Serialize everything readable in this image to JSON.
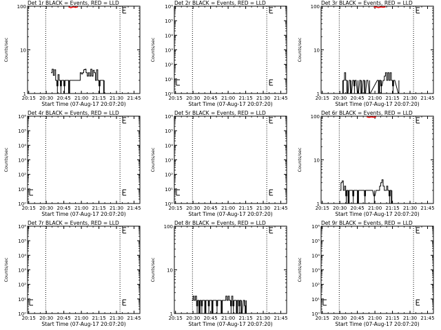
{
  "chart_data": [
    {
      "type": "line",
      "title": "Det 1r BLACK = Events, RED = LLD",
      "xlabel": "Start Time (07-Aug-17 20:07:20)",
      "ylabel": "Counts/sec",
      "yscale": "log",
      "ylim": [
        1,
        100
      ],
      "yticks": [
        "1",
        "10",
        "100"
      ],
      "xticks": [
        "20:15",
        "20:30",
        "20:45",
        "21:00",
        "21:15",
        "21:30",
        "21:45"
      ],
      "xlim": [
        7,
        103
      ],
      "vlines": [
        22.5,
        86,
        103
      ],
      "events": [
        [
          27,
          3
        ],
        [
          28,
          3.6
        ],
        [
          29,
          2.6
        ],
        [
          30,
          3.5
        ],
        [
          31,
          2
        ],
        [
          32,
          1.5
        ],
        [
          33,
          2.7
        ],
        [
          34,
          2
        ],
        [
          35,
          1.5
        ],
        [
          36,
          2
        ],
        [
          37,
          2
        ],
        [
          38,
          1.5
        ],
        [
          39,
          2
        ],
        [
          40,
          2
        ],
        [
          41,
          2
        ],
        [
          42,
          1
        ],
        [
          43,
          2
        ],
        [
          44,
          2
        ],
        [
          45,
          2
        ],
        [
          46,
          2
        ],
        [
          47,
          2
        ],
        [
          48,
          2
        ],
        [
          50,
          2
        ],
        [
          51,
          2
        ],
        [
          52,
          3
        ],
        [
          53,
          2.8
        ],
        [
          54,
          3
        ],
        [
          55,
          3.5
        ],
        [
          56,
          3.6
        ],
        [
          57,
          3
        ],
        [
          58,
          2.5
        ],
        [
          59,
          3
        ],
        [
          60,
          2.5
        ],
        [
          61,
          3.6
        ],
        [
          62,
          2.5
        ],
        [
          63,
          3.4
        ],
        [
          64,
          3
        ],
        [
          65,
          2
        ],
        [
          66,
          3.5
        ],
        [
          67,
          2
        ],
        [
          68,
          1.5
        ],
        [
          69,
          2
        ],
        [
          70,
          2
        ],
        [
          71,
          2
        ],
        [
          72,
          1
        ]
      ],
      "lld": [
        [
          42,
          100
        ],
        [
          44,
          95
        ],
        [
          46,
          100
        ],
        [
          48,
          97
        ],
        [
          50,
          100
        ]
      ],
      "series": [
        {
          "name": "BLACK = Events"
        },
        {
          "name": "RED = LLD"
        }
      ]
    },
    {
      "type": "line",
      "title": "Det 2r BLACK = Events, RED = LLD",
      "xlabel": "Start Time (07-Aug-17 20:07:20)",
      "ylabel": "Counts/sec",
      "yscale": "log",
      "ylim": [
        1,
        1000000
      ],
      "yticks": [
        "10⁰",
        "10¹",
        "10²",
        "10³",
        "10⁴",
        "10⁵",
        "10⁶"
      ],
      "xticks": [
        "20:15",
        "20:30",
        "20:45",
        "21:00",
        "21:15",
        "21:30",
        "21:45"
      ],
      "xlim": [
        7,
        103
      ],
      "vlines": [
        22.5,
        86,
        103
      ],
      "events": [],
      "lld": []
    },
    {
      "type": "line",
      "title": "Det 3r BLACK = Events, RED = LLD",
      "xlabel": "Start Time (07-Aug-17 20:07:20)",
      "ylabel": "Counts/sec",
      "yscale": "log",
      "ylim": [
        1,
        100
      ],
      "yticks": [
        "1",
        "10",
        "100"
      ],
      "xticks": [
        "20:15",
        "20:30",
        "20:45",
        "21:00",
        "21:15",
        "21:30",
        "21:45"
      ],
      "xlim": [
        7,
        103
      ],
      "vlines": [
        22.5,
        86,
        103
      ],
      "events": [
        [
          25,
          1
        ],
        [
          26,
          2
        ],
        [
          27,
          3
        ],
        [
          28,
          2
        ],
        [
          29,
          1
        ],
        [
          31,
          2
        ],
        [
          32,
          1
        ],
        [
          34,
          2
        ],
        [
          35,
          1.5
        ],
        [
          36,
          2
        ],
        [
          38,
          1
        ],
        [
          40,
          2
        ],
        [
          41,
          1
        ],
        [
          43,
          2
        ],
        [
          44,
          1
        ],
        [
          46,
          2
        ],
        [
          48,
          1
        ],
        [
          55,
          2
        ],
        [
          56,
          1
        ],
        [
          57,
          2
        ],
        [
          58,
          1.5
        ],
        [
          60,
          2
        ],
        [
          61,
          2.5
        ],
        [
          62,
          3
        ],
        [
          63,
          2
        ],
        [
          64,
          3
        ],
        [
          65,
          2
        ],
        [
          66,
          3
        ],
        [
          67,
          2
        ],
        [
          68,
          1.5
        ],
        [
          69,
          2
        ],
        [
          73,
          1
        ]
      ],
      "lld": [
        [
          52,
          98
        ],
        [
          54,
          100
        ],
        [
          56,
          96
        ],
        [
          58,
          100
        ],
        [
          60,
          98
        ],
        [
          62,
          100
        ]
      ],
      "series": [
        {
          "name": "BLACK = Events"
        },
        {
          "name": "RED = LLD"
        }
      ]
    },
    {
      "type": "line",
      "title": "Det 4r BLACK = Events, RED = LLD",
      "xlabel": "Start Time (07-Aug-17 20:07:20)",
      "ylabel": "Counts/sec",
      "yscale": "log",
      "ylim": [
        1,
        1000000
      ],
      "yticks": [
        "10⁰",
        "10¹",
        "10²",
        "10³",
        "10⁴",
        "10⁵",
        "10⁶"
      ],
      "xticks": [
        "20:15",
        "20:30",
        "20:45",
        "21:00",
        "21:15",
        "21:30",
        "21:45"
      ],
      "xlim": [
        7,
        103
      ],
      "vlines": [
        22.5,
        86,
        103
      ],
      "events": [],
      "lld": []
    },
    {
      "type": "line",
      "title": "Det 5r BLACK = Events, RED = LLD",
      "xlabel": "Start Time (07-Aug-17 20:07:20)",
      "ylabel": "Counts/sec",
      "yscale": "log",
      "ylim": [
        1,
        1000000
      ],
      "yticks": [
        "10⁰",
        "10¹",
        "10²",
        "10³",
        "10⁴",
        "10⁵",
        "10⁶"
      ],
      "xticks": [
        "20:15",
        "20:30",
        "20:45",
        "21:00",
        "21:15",
        "21:30",
        "21:45"
      ],
      "xlim": [
        7,
        103
      ],
      "vlines": [
        22.5,
        86,
        103
      ],
      "events": [],
      "lld": []
    },
    {
      "type": "line",
      "title": "Det 6r BLACK = Events, RED = LLD",
      "xlabel": "Start Time (07-Aug-17 20:07:20)",
      "ylabel": "Counts/sec",
      "yscale": "log",
      "ylim": [
        1,
        100
      ],
      "yticks": [
        "1",
        "10",
        "100"
      ],
      "xticks": [
        "20:15",
        "20:30",
        "20:45",
        "21:00",
        "21:15",
        "21:30",
        "21:45"
      ],
      "xlim": [
        7,
        103
      ],
      "vlines": [
        22.5,
        86,
        103
      ],
      "events": [
        [
          23,
          2
        ],
        [
          24,
          3
        ],
        [
          25,
          3.3
        ],
        [
          26,
          2
        ],
        [
          27,
          2.5
        ],
        [
          28,
          1.5
        ],
        [
          29,
          2
        ],
        [
          30,
          1
        ],
        [
          31,
          2
        ],
        [
          32,
          2
        ],
        [
          33,
          2
        ],
        [
          34,
          1.5
        ],
        [
          35,
          2
        ],
        [
          36,
          2
        ],
        [
          37,
          2
        ],
        [
          38,
          1
        ],
        [
          39,
          2
        ],
        [
          40,
          2
        ],
        [
          41,
          2
        ],
        [
          42,
          2
        ],
        [
          43,
          2
        ],
        [
          44,
          1.5
        ],
        [
          45,
          2
        ],
        [
          46,
          2
        ],
        [
          47,
          2
        ],
        [
          48,
          2
        ],
        [
          50,
          2
        ],
        [
          52,
          1.5
        ],
        [
          54,
          2
        ],
        [
          55,
          2
        ],
        [
          56,
          2
        ],
        [
          57,
          2.5
        ],
        [
          58,
          3
        ],
        [
          59,
          3.5
        ],
        [
          60,
          2.5
        ],
        [
          61,
          2
        ],
        [
          62,
          2
        ],
        [
          63,
          2.5
        ],
        [
          64,
          2
        ],
        [
          65,
          1.5
        ],
        [
          66,
          2
        ],
        [
          67,
          1
        ]
      ],
      "lld": [
        [
          46,
          100
        ],
        [
          48,
          97
        ],
        [
          50,
          100
        ],
        [
          52,
          98
        ],
        [
          54,
          100
        ]
      ],
      "series": [
        {
          "name": "BLACK = Events"
        },
        {
          "name": "RED = LLD"
        }
      ]
    },
    {
      "type": "line",
      "title": "Det 7r BLACK = Events, RED = LLD",
      "xlabel": "Start Time (07-Aug-17 20:07:20)",
      "ylabel": "Counts/sec",
      "yscale": "log",
      "ylim": [
        1,
        1000000
      ],
      "yticks": [
        "10⁰",
        "10¹",
        "10²",
        "10³",
        "10⁴",
        "10⁵",
        "10⁶"
      ],
      "xticks": [
        "20:15",
        "20:30",
        "20:45",
        "21:00",
        "21:15",
        "21:30",
        "21:45"
      ],
      "xlim": [
        7,
        103
      ],
      "vlines": [
        22.5,
        86,
        103
      ],
      "events": [],
      "lld": []
    },
    {
      "type": "line",
      "title": "Det 8r BLACK = Events, RED = LLD",
      "xlabel": "Start Time (07-Aug-17 20:07:20)",
      "ylabel": "Counts/sec",
      "yscale": "log",
      "ylim": [
        1,
        100
      ],
      "yticks": [
        "1",
        "10",
        "100"
      ],
      "xticks": [
        "20:15",
        "20:30",
        "20:45",
        "21:00",
        "21:15",
        "21:30",
        "21:45"
      ],
      "xlim": [
        7,
        103
      ],
      "vlines": [
        22.5,
        86,
        103
      ],
      "events": [
        [
          22,
          2
        ],
        [
          23,
          2.5
        ],
        [
          24,
          2
        ],
        [
          25,
          2.5
        ],
        [
          26,
          1.5
        ],
        [
          27,
          2
        ],
        [
          28,
          1
        ],
        [
          29,
          2
        ],
        [
          30,
          1.5
        ],
        [
          31,
          2
        ],
        [
          32,
          2
        ],
        [
          33,
          1
        ],
        [
          34,
          2
        ],
        [
          35,
          2
        ],
        [
          36,
          1.5
        ],
        [
          37,
          2
        ],
        [
          38,
          2
        ],
        [
          39,
          1
        ],
        [
          40,
          2
        ],
        [
          41,
          2
        ],
        [
          42,
          2
        ],
        [
          43,
          1.5
        ],
        [
          44,
          2
        ],
        [
          45,
          2
        ],
        [
          46,
          2
        ],
        [
          47,
          1
        ],
        [
          48,
          2
        ],
        [
          50,
          2
        ],
        [
          51,
          2.5
        ],
        [
          52,
          2
        ],
        [
          53,
          2.5
        ],
        [
          54,
          2
        ],
        [
          55,
          1.5
        ],
        [
          56,
          2.5
        ],
        [
          57,
          1.5
        ],
        [
          58,
          2
        ],
        [
          59,
          2
        ],
        [
          60,
          1
        ],
        [
          61,
          2
        ],
        [
          62,
          1.5
        ],
        [
          63,
          2
        ],
        [
          64,
          1
        ],
        [
          66,
          2
        ],
        [
          67,
          1.5
        ],
        [
          68,
          1
        ]
      ],
      "lld": [],
      "series": [
        {
          "name": "BLACK = Events"
        }
      ]
    },
    {
      "type": "line",
      "title": "Det 9r BLACK = Events, RED = LLD",
      "xlabel": "Start Time (07-Aug-17 20:07:20)",
      "ylabel": "Counts/sec",
      "yscale": "log",
      "ylim": [
        1,
        1000000
      ],
      "yticks": [
        "10⁰",
        "10¹",
        "10²",
        "10³",
        "10⁴",
        "10⁵",
        "10⁶"
      ],
      "xticks": [
        "20:15",
        "20:30",
        "20:45",
        "21:00",
        "21:15",
        "21:30",
        "21:45"
      ],
      "xlim": [
        7,
        103
      ],
      "vlines": [
        22.5,
        86,
        103
      ],
      "events": [],
      "lld": []
    }
  ],
  "colors": {
    "events": "#000000",
    "lld": "#ff0000",
    "background": "#ffffff"
  }
}
